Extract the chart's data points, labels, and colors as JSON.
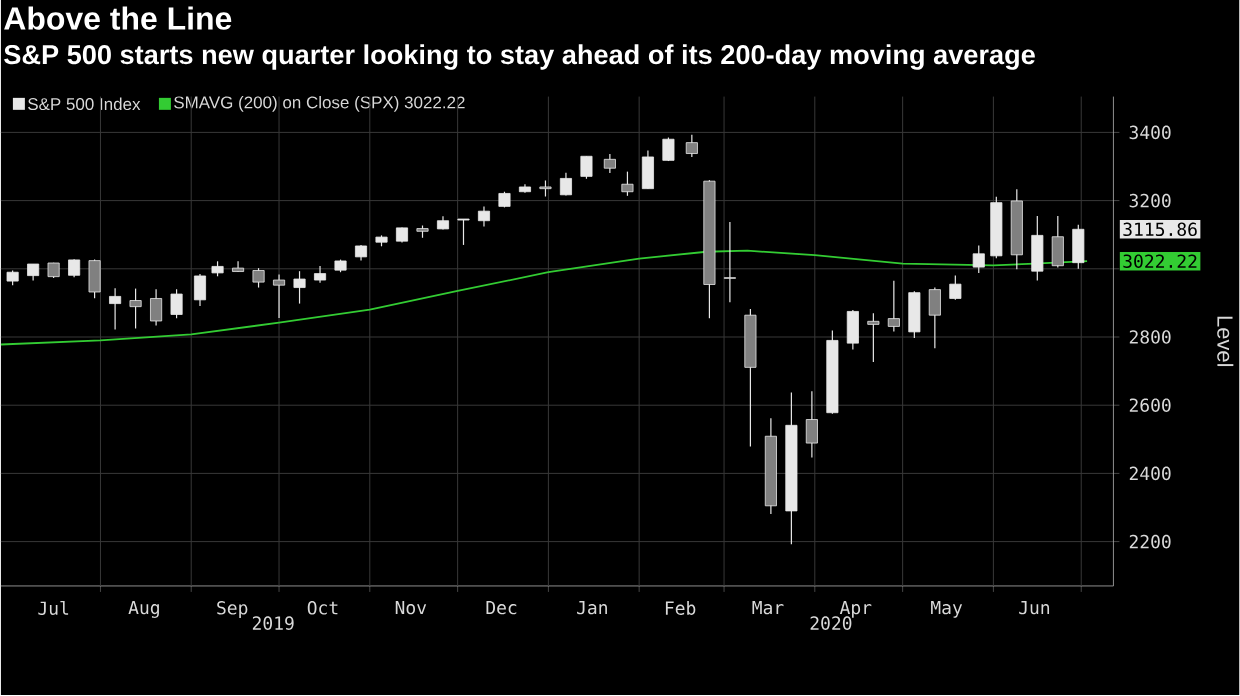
{
  "chart_data": {
    "type": "candlestick",
    "title": "Above the Line",
    "subtitle": "S&P 500 starts new quarter looking to stay ahead of its 200-day moving average",
    "ylabel": "Level",
    "xlim": [
      "2019-06-28",
      "2020-07-12"
    ],
    "ylim": [
      2070,
      3505
    ],
    "xticks": [
      {
        "value": "2019-07-16",
        "label": "Jul"
      },
      {
        "value": "2019-08-16",
        "label": "Aug"
      },
      {
        "value": "2019-09-15",
        "label": "Sep"
      },
      {
        "value": "2019-10-16",
        "label": "Oct"
      },
      {
        "value": "2019-11-15",
        "label": "Nov"
      },
      {
        "value": "2019-12-16",
        "label": "Dec"
      },
      {
        "value": "2020-01-16",
        "label": "Jan"
      },
      {
        "value": "2020-02-15",
        "label": "Feb"
      },
      {
        "value": "2020-03-16",
        "label": "Mar"
      },
      {
        "value": "2020-04-15",
        "label": "Apr"
      },
      {
        "value": "2020-05-16",
        "label": "May"
      },
      {
        "value": "2020-06-15",
        "label": "Jun"
      },
      {
        "value": "2019-08-01",
        "label": null
      },
      {
        "value": "2019-09-01",
        "label": null
      },
      {
        "value": "2019-10-01",
        "label": null
      },
      {
        "value": "2019-11-01",
        "label": null
      },
      {
        "value": "2019-12-01",
        "label": null
      },
      {
        "value": "2020-01-01",
        "label": null
      },
      {
        "value": "2020-02-01",
        "label": null
      },
      {
        "value": "2020-03-01",
        "label": null
      },
      {
        "value": "2020-04-01",
        "label": null
      },
      {
        "value": "2020-05-01",
        "label": null
      },
      {
        "value": "2020-06-01",
        "label": null
      },
      {
        "value": "2020-07-01",
        "label": null
      }
    ],
    "yticks": [
      2200,
      2400,
      2600,
      2800,
      {
        "value": 3000,
        "label": null
      },
      3200,
      3400
    ],
    "grid": true,
    "legend": "top left",
    "series": [
      {
        "name": "S&P 500 Index",
        "color": "#e8e8e8",
        "x": [
          "2019-07-02",
          "2019-07-09",
          "2019-07-16",
          "2019-07-23",
          "2019-07-30",
          "2019-08-06",
          "2019-08-13",
          "2019-08-20",
          "2019-08-27",
          "2019-09-04",
          "2019-09-10",
          "2019-09-17",
          "2019-09-24",
          "2019-10-01",
          "2019-10-08",
          "2019-10-15",
          "2019-10-22",
          "2019-10-29",
          "2019-11-05",
          "2019-11-12",
          "2019-11-19",
          "2019-11-26",
          "2019-12-03",
          "2019-12-10",
          "2019-12-17",
          "2019-12-24",
          "2019-12-31",
          "2020-01-07",
          "2020-01-14",
          "2020-01-22",
          "2020-01-28",
          "2020-02-04",
          "2020-02-11",
          "2020-02-19",
          "2020-02-25",
          "2020-03-03",
          "2020-03-10",
          "2020-03-17",
          "2020-03-24",
          "2020-03-31",
          "2020-04-07",
          "2020-04-14",
          "2020-04-21",
          "2020-04-28",
          "2020-05-05",
          "2020-05-12",
          "2020-05-19",
          "2020-05-27",
          "2020-06-02",
          "2020-06-09",
          "2020-06-16",
          "2020-06-23",
          "2020-06-30"
        ],
        "ohlc": [
          [
            2964,
            2995,
            2952,
            2990
          ],
          [
            2980,
            3014,
            2966,
            3014
          ],
          [
            3017,
            3018,
            2973,
            2977
          ],
          [
            2981,
            3028,
            2975,
            3026
          ],
          [
            3024,
            3027,
            2914,
            2932
          ],
          [
            2898,
            2943,
            2822,
            2919
          ],
          [
            2907,
            2942,
            2825,
            2889
          ],
          [
            2913,
            2940,
            2834,
            2847
          ],
          [
            2866,
            2940,
            2855,
            2926
          ],
          [
            2909,
            2985,
            2891,
            2979
          ],
          [
            2988,
            3022,
            2978,
            3007
          ],
          [
            3002,
            3022,
            2991,
            2992
          ],
          [
            2995,
            3002,
            2945,
            2961
          ],
          [
            2967,
            2983,
            2856,
            2952
          ],
          [
            2945,
            2993,
            2898,
            2970
          ],
          [
            2967,
            3008,
            2959,
            2986
          ],
          [
            2996,
            3027,
            2990,
            3023
          ],
          [
            3035,
            3070,
            3024,
            3067
          ],
          [
            3078,
            3098,
            3066,
            3093
          ],
          [
            3081,
            3121,
            3077,
            3120
          ],
          [
            3118,
            3127,
            3091,
            3110
          ],
          [
            3117,
            3154,
            3115,
            3141
          ],
          [
            3143,
            3146,
            3070,
            3146
          ],
          [
            3141,
            3183,
            3124,
            3169
          ],
          [
            3183,
            3226,
            3180,
            3221
          ],
          [
            3226,
            3248,
            3223,
            3240
          ],
          [
            3240,
            3259,
            3212,
            3235
          ],
          [
            3217,
            3282,
            3215,
            3265
          ],
          [
            3271,
            3330,
            3264,
            3330
          ],
          [
            3321,
            3337,
            3281,
            3295
          ],
          [
            3248,
            3285,
            3214,
            3226
          ],
          [
            3235,
            3347,
            3235,
            3328
          ],
          [
            3318,
            3385,
            3316,
            3380
          ],
          [
            3370,
            3393,
            3328,
            3338
          ],
          [
            3257,
            3260,
            2855,
            2954
          ],
          [
            2974,
            3137,
            2902,
            2972
          ],
          [
            2864,
            2882,
            2479,
            2711
          ],
          [
            2509,
            2562,
            2281,
            2305
          ],
          [
            2290,
            2637,
            2192,
            2541
          ],
          [
            2558,
            2641,
            2447,
            2489
          ],
          [
            2578,
            2819,
            2575,
            2790
          ],
          [
            2782,
            2879,
            2763,
            2875
          ],
          [
            2846,
            2870,
            2727,
            2837
          ],
          [
            2854,
            2965,
            2816,
            2831
          ],
          [
            2815,
            2934,
            2797,
            2930
          ],
          [
            2939,
            2945,
            2767,
            2864
          ],
          [
            2913,
            2980,
            2909,
            2955
          ],
          [
            3005,
            3068,
            2988,
            3044
          ],
          [
            3038,
            3211,
            3031,
            3194
          ],
          [
            3199,
            3233,
            2999,
            3041
          ],
          [
            2993,
            3155,
            2966,
            3098
          ],
          [
            3094,
            3155,
            3004,
            3009
          ],
          [
            3018,
            3129,
            3000,
            3115.86
          ]
        ]
      },
      {
        "name": "SMAVG (200)  on Close (SPX) 3022.22",
        "type": "line",
        "color": "#33cc33",
        "x": [
          "2019-06-28",
          "2019-08-01",
          "2019-09-01",
          "2019-10-01",
          "2019-11-01",
          "2019-12-01",
          "2020-01-01",
          "2020-02-01",
          "2020-02-24",
          "2020-03-09",
          "2020-04-01",
          "2020-05-01",
          "2020-06-01",
          "2020-06-15",
          "2020-07-03"
        ],
        "values": [
          2778,
          2790,
          2808,
          2842,
          2880,
          2935,
          2990,
          3030,
          3050,
          3053,
          3040,
          3015,
          3010,
          3015,
          3022.22
        ]
      }
    ],
    "annotations": [
      "3115.86",
      "3022.22",
      "2019",
      "2020"
    ]
  }
}
